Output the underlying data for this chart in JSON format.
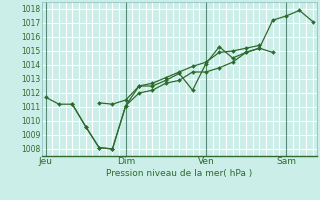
{
  "title": "",
  "xlabel": "Pression niveau de la mer( hPa )",
  "bg_color": "#cceee8",
  "grid_color": "#ffffff",
  "line_color": "#2d6a2d",
  "marker_color": "#2d6a2d",
  "ylim": [
    1007.5,
    1018.5
  ],
  "yticks": [
    1008,
    1009,
    1010,
    1011,
    1012,
    1013,
    1014,
    1015,
    1016,
    1017,
    1018
  ],
  "xtick_labels": [
    "Jeu",
    "Dim",
    "Ven",
    "Sam"
  ],
  "xtick_positions": [
    0,
    3,
    6,
    9
  ],
  "vline_positions": [
    0,
    3,
    6,
    9
  ],
  "xlim": [
    -0.15,
    10.15
  ],
  "minor_xtick_positions": [
    0.25,
    0.5,
    0.75,
    1.0,
    1.25,
    1.5,
    1.75,
    2.0,
    2.25,
    2.5,
    2.75,
    3.25,
    3.5,
    3.75,
    4.0,
    4.25,
    4.5,
    4.75,
    5.0,
    5.25,
    5.5,
    5.75,
    6.25,
    6.5,
    6.75,
    7.0,
    7.25,
    7.5,
    7.75,
    8.0,
    8.25,
    8.5,
    8.75,
    9.25,
    9.5,
    9.75,
    10.0
  ],
  "series": [
    {
      "x": [
        0,
        0.5,
        1.0,
        1.5,
        2.0,
        2.5,
        3.0,
        3.5,
        4.0,
        4.5,
        5.0,
        5.5,
        6.0,
        6.5,
        7.0,
        7.5,
        8.0,
        8.5,
        9.0,
        9.5,
        10.0
      ],
      "y": [
        1011.7,
        1011.2,
        1011.2,
        1009.6,
        1008.1,
        1008.0,
        1011.1,
        1012.0,
        1012.2,
        1012.7,
        1012.9,
        1013.5,
        1013.5,
        1013.8,
        1014.2,
        1014.9,
        1015.2,
        1017.2,
        1017.5,
        1017.9,
        1017.1
      ]
    },
    {
      "x": [
        1.0,
        1.5,
        2.0,
        2.5,
        3.0,
        3.5,
        4.0,
        4.5,
        5.0,
        5.5,
        6.0,
        6.5,
        7.0,
        7.5,
        8.0,
        8.5
      ],
      "y": [
        1011.2,
        1009.6,
        1008.1,
        1008.0,
        1011.1,
        1012.5,
        1012.5,
        1012.9,
        1013.4,
        1012.2,
        1014.1,
        1015.3,
        1014.5,
        1014.9,
        1015.2,
        1014.9
      ]
    },
    {
      "x": [
        2.0,
        2.5,
        3.0,
        3.5,
        4.0,
        4.5,
        5.0,
        5.5,
        6.0,
        6.5,
        7.0,
        7.5,
        8.0
      ],
      "y": [
        1011.3,
        1011.2,
        1011.5,
        1012.5,
        1012.7,
        1013.1,
        1013.5,
        1013.9,
        1014.2,
        1014.9,
        1015.0,
        1015.2,
        1015.4
      ]
    }
  ]
}
